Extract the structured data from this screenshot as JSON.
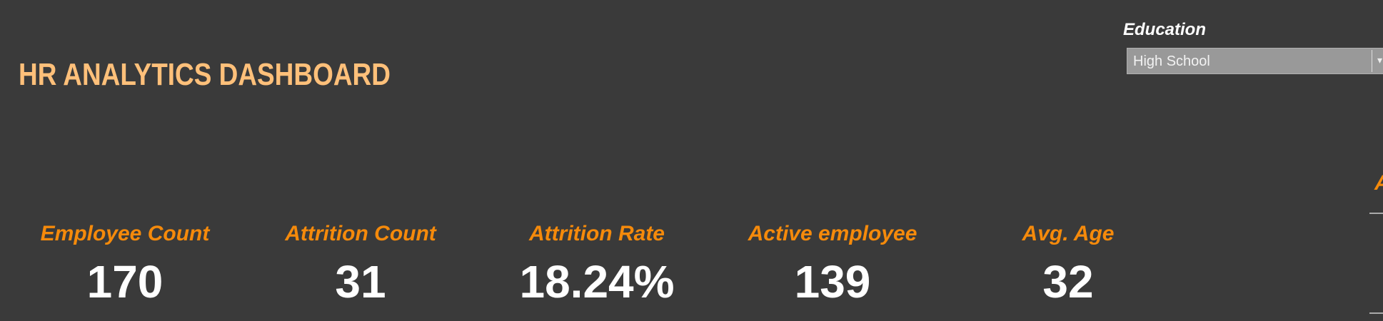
{
  "header": {
    "title": "HR ANALYTICS DASHBOARD"
  },
  "filter": {
    "label": "Education",
    "selected": "High School",
    "arrow_icon": "▾"
  },
  "kpis": [
    {
      "label": "Employee Count",
      "value": "170"
    },
    {
      "label": "Attrition Count",
      "value": "31"
    },
    {
      "label": "Attrition Rate",
      "value": "18.24%"
    },
    {
      "label": "Active employee",
      "value": "139"
    },
    {
      "label": "Avg. Age",
      "value": "32"
    }
  ],
  "right_panel": {
    "partial_label": "A"
  },
  "colors": {
    "background": "#3a3a3a",
    "title": "#ffc07a",
    "kpi_label": "#f58a0b",
    "kpi_value": "#ffffff"
  }
}
